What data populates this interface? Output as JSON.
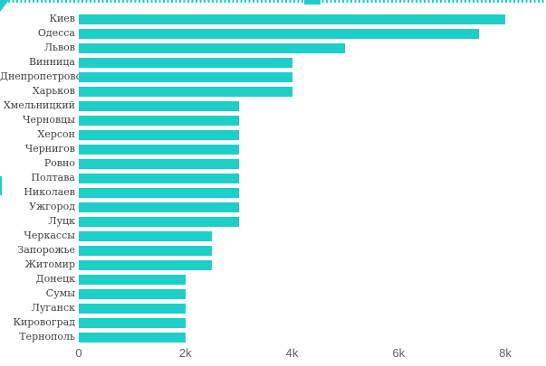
{
  "page": {
    "background": "#ffffff",
    "accent_color": "#1dcfc9"
  },
  "chart_data": {
    "type": "bar",
    "orientation": "horizontal",
    "title": "",
    "xlabel": "",
    "ylabel": "",
    "categories": [
      "Киев",
      "Одесса",
      "Львов",
      "Винница",
      "Днепропетровск",
      "Харьков",
      "Хмельницкий",
      "Черновцы",
      "Херсон",
      "Чернигов",
      "Ровно",
      "Полтава",
      "Николаев",
      "Ужгород",
      "Луцк",
      "Черкассы",
      "Запорожье",
      "Житомир",
      "Донецк",
      "Сумы",
      "Луганск",
      "Кировоград",
      "Тернополь"
    ],
    "values": [
      8000,
      7500,
      5000,
      4000,
      4000,
      4000,
      3000,
      3000,
      3000,
      3000,
      3000,
      3000,
      3000,
      3000,
      3000,
      2500,
      2500,
      2500,
      2000,
      2000,
      2000,
      2000,
      2000
    ],
    "bar_color": "#1dcfc9",
    "xlim": [
      0,
      8000
    ],
    "x_ticks": [
      {
        "value": 0,
        "label": "0"
      },
      {
        "value": 2000,
        "label": "2k"
      },
      {
        "value": 4000,
        "label": "4k"
      },
      {
        "value": 6000,
        "label": "6k"
      },
      {
        "value": 8000,
        "label": "8k"
      }
    ],
    "grid": false,
    "legend": false
  }
}
